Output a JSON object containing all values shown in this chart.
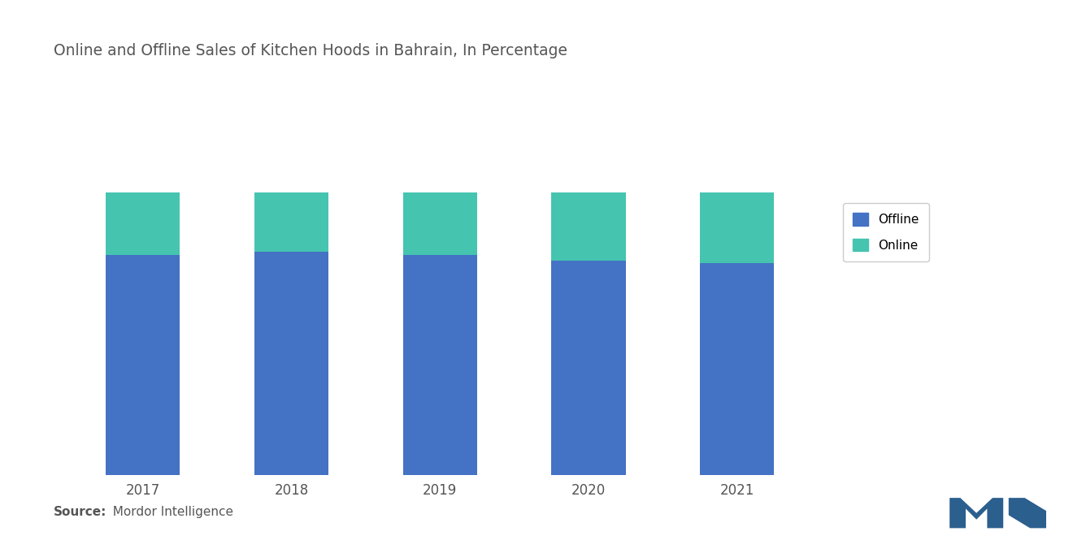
{
  "title": "Online and Offline Sales of Kitchen Hoods in Bahrain, In Percentage",
  "years": [
    "2017",
    "2018",
    "2019",
    "2020",
    "2021"
  ],
  "offline": [
    78,
    79,
    78,
    76,
    75
  ],
  "online": [
    22,
    21,
    22,
    24,
    25
  ],
  "offline_color": "#4472C4",
  "online_color": "#45C4B0",
  "background_color": "#ffffff",
  "bar_width": 0.5,
  "ylim": [
    0,
    130
  ],
  "source_label_bold": "Source:",
  "source_label_normal": "  Mordor Intelligence",
  "legend_labels": [
    "Offline",
    "Online"
  ],
  "title_fontsize": 13.5,
  "tick_fontsize": 12,
  "source_fontsize": 11,
  "legend_fontsize": 11
}
